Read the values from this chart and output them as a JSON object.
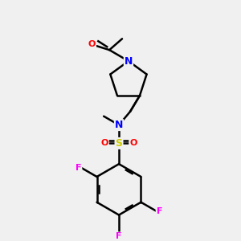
{
  "background_color": "#f0f0f0",
  "bond_color": "#000000",
  "atom_colors": {
    "N": "#0000ff",
    "O": "#ff0000",
    "S": "#cccc00",
    "F": "#ff00ff",
    "C": "#000000"
  },
  "scale": 1.0
}
